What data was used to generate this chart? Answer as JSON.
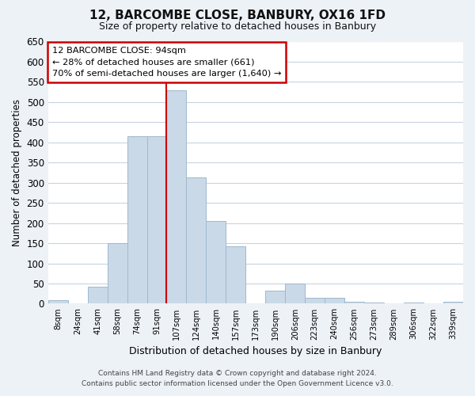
{
  "title": "12, BARCOMBE CLOSE, BANBURY, OX16 1FD",
  "subtitle": "Size of property relative to detached houses in Banbury",
  "xlabel": "Distribution of detached houses by size in Banbury",
  "ylabel": "Number of detached properties",
  "bar_labels": [
    "8sqm",
    "24sqm",
    "41sqm",
    "58sqm",
    "74sqm",
    "91sqm",
    "107sqm",
    "124sqm",
    "140sqm",
    "157sqm",
    "173sqm",
    "190sqm",
    "206sqm",
    "223sqm",
    "240sqm",
    "256sqm",
    "273sqm",
    "289sqm",
    "306sqm",
    "322sqm",
    "339sqm"
  ],
  "bar_values": [
    8,
    0,
    43,
    150,
    415,
    415,
    530,
    313,
    205,
    143,
    0,
    32,
    49,
    15,
    15,
    5,
    2,
    0,
    2,
    0,
    5
  ],
  "bar_color": "#c9d9e8",
  "bar_edge_color": "#a0b8cc",
  "vline_x_index": 6,
  "vline_color": "#cc0000",
  "ylim": [
    0,
    650
  ],
  "yticks": [
    0,
    50,
    100,
    150,
    200,
    250,
    300,
    350,
    400,
    450,
    500,
    550,
    600,
    650
  ],
  "annotation_line1": "12 BARCOMBE CLOSE: 94sqm",
  "annotation_line2": "← 28% of detached houses are smaller (661)",
  "annotation_line3": "70% of semi-detached houses are larger (1,640) →",
  "annotation_box_color": "#ffffff",
  "annotation_box_edge": "#cc0000",
  "footer_line1": "Contains HM Land Registry data © Crown copyright and database right 2024.",
  "footer_line2": "Contains public sector information licensed under the Open Government Licence v3.0.",
  "background_color": "#edf2f7",
  "plot_background": "#ffffff",
  "grid_color": "#c8d4e0"
}
